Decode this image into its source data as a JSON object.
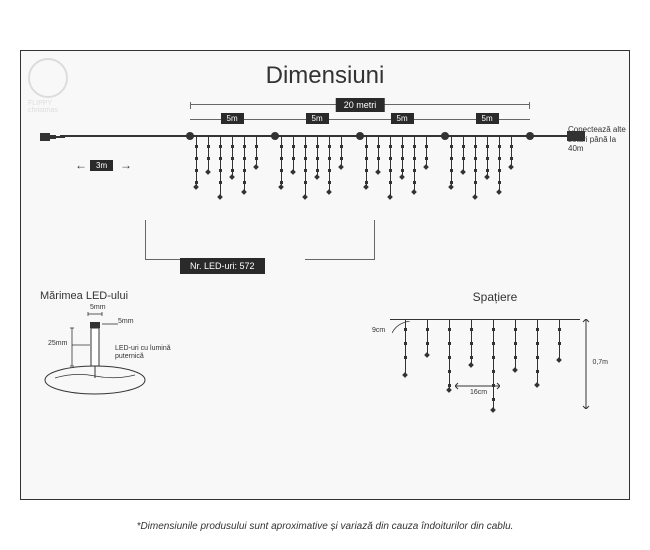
{
  "title": "Dimensiuni",
  "logo_text": "FLIPPY christmas",
  "total_length": "20 metri",
  "segment_length": "5m",
  "lead_length": "3m",
  "connect_text": "Conectează alte seturi până la 40m",
  "led_count_label": "Nr. LED-uri: 572",
  "led_size": {
    "title": "Mărimea LED-ului",
    "width_top": "5mm",
    "width_side": "5mm",
    "height": "25mm",
    "desc": "LED-uri cu lumină puternică"
  },
  "spacing": {
    "title": "Spațiere",
    "horizontal": "9cm",
    "gap": "16cm",
    "drop": "0,7m"
  },
  "footnote": "*Dimensiunile produsului sunt aproximative și variază din cauza îndoiturilor din cablu.",
  "colors": {
    "box": "#2a2a2a",
    "line": "#333333",
    "bg": "#f8f8f8"
  },
  "segments": 4,
  "strands_per_segment": 6,
  "strand_heights": [
    50,
    35,
    60,
    40,
    55,
    30
  ]
}
